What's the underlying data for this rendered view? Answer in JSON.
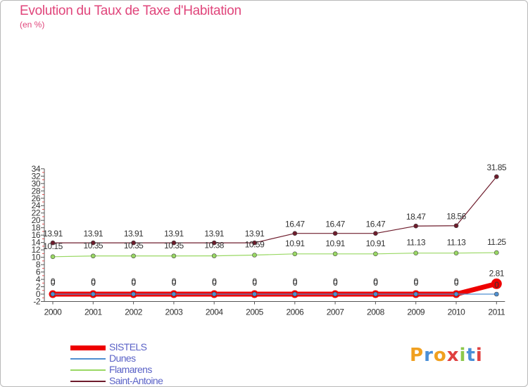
{
  "title": "Evolution du Taux de Taxe d'Habitation",
  "unit": "(en %)",
  "logo": "Proxiti",
  "chart_data": {
    "type": "line",
    "x": [
      "2000",
      "2001",
      "2002",
      "2003",
      "2004",
      "2005",
      "2006",
      "2007",
      "2008",
      "2009",
      "2010",
      "2011"
    ],
    "ylim": [
      -2,
      34
    ],
    "yticks": [
      -2,
      0,
      2,
      4,
      6,
      8,
      10,
      12,
      14,
      16,
      18,
      20,
      22,
      24,
      26,
      28,
      30,
      32,
      34
    ],
    "grid": false,
    "legend_position": "bottom-left",
    "series": [
      {
        "name": "SISTELS",
        "color": "#ee0000",
        "values": [
          0,
          0,
          0,
          0,
          0,
          0,
          0,
          0,
          0,
          0,
          0,
          2.81
        ],
        "labels": [
          "0",
          "0",
          "0",
          "0",
          "0",
          "0",
          "0",
          "0",
          "0",
          "0",
          "0",
          "2.81"
        ]
      },
      {
        "name": "Dunes",
        "color": "#4f8fd0",
        "values": [
          0,
          0,
          0,
          0,
          0,
          0,
          0,
          0,
          0,
          0,
          0,
          0
        ],
        "labels": [
          "0",
          "0",
          "0",
          "0",
          "0",
          "0",
          "0",
          "0",
          "0",
          "0",
          "0",
          "0"
        ]
      },
      {
        "name": "Flamarens",
        "color": "#99d863",
        "values": [
          10.15,
          10.35,
          10.35,
          10.35,
          10.38,
          10.59,
          10.91,
          10.91,
          10.91,
          11.13,
          11.13,
          11.25
        ],
        "labels": [
          "10.15",
          "10.35",
          "10.35",
          "10.35",
          "10.38",
          "10.59",
          "10.91",
          "10.91",
          "10.91",
          "11.13",
          "11.13",
          "11.25"
        ]
      },
      {
        "name": "Saint-Antoine",
        "color": "#6e1c2c",
        "values": [
          13.91,
          13.91,
          13.91,
          13.91,
          13.91,
          13.91,
          16.47,
          16.47,
          16.47,
          18.47,
          18.56,
          31.85
        ],
        "labels": [
          "13.91",
          "13.91",
          "13.91",
          "13.91",
          "13.91",
          "13.91",
          "16.47",
          "16.47",
          "16.47",
          "18.47",
          "18.56",
          "31.85"
        ]
      }
    ]
  }
}
